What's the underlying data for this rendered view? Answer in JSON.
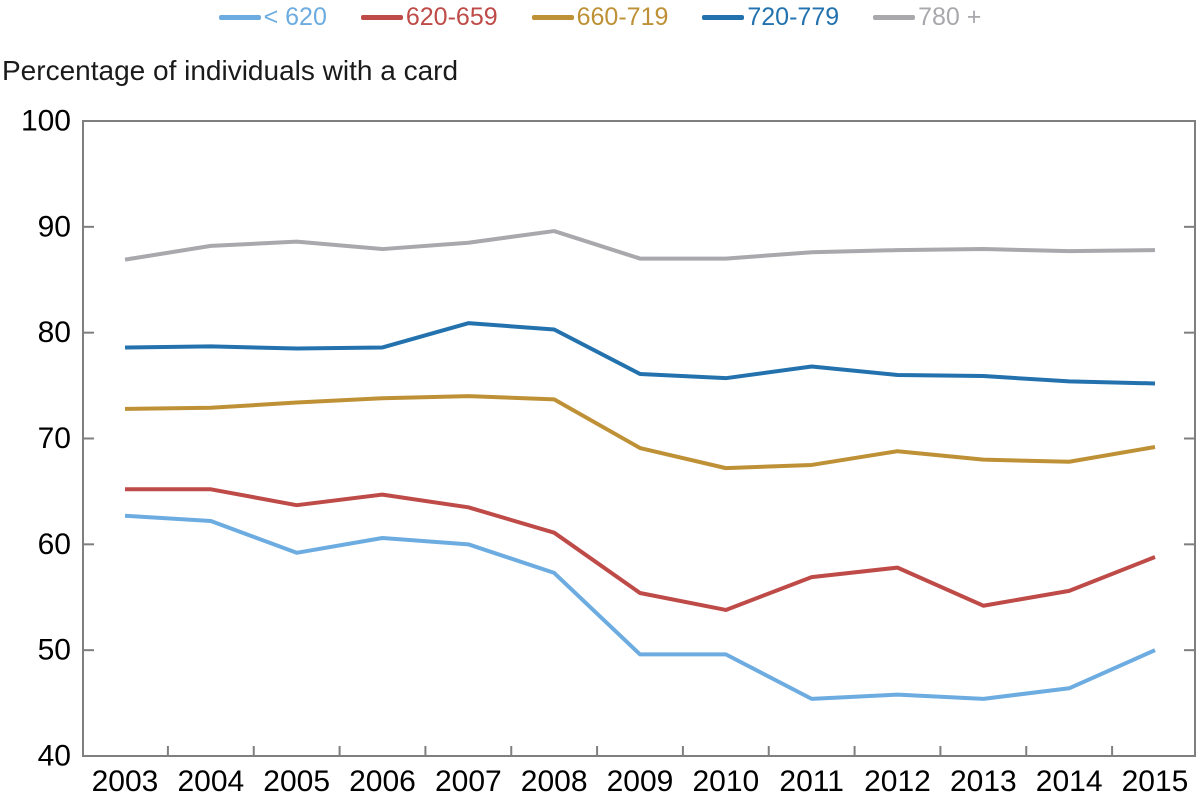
{
  "chart_data": {
    "type": "line",
    "title": "Percentage of individuals with a card",
    "xlabel": "",
    "ylabel": "Percentage of individuals with a card",
    "x": [
      2003,
      2004,
      2005,
      2006,
      2007,
      2008,
      2009,
      2010,
      2011,
      2012,
      2013,
      2014,
      2015
    ],
    "series": [
      {
        "name": "< 620",
        "color": "#6CACE0",
        "values": [
          62.7,
          62.2,
          59.2,
          60.6,
          60.0,
          57.3,
          49.6,
          49.6,
          45.4,
          45.8,
          45.4,
          46.4,
          50.0
        ]
      },
      {
        "name": "620-659",
        "color": "#BE4B48",
        "values": [
          65.2,
          65.2,
          63.7,
          64.7,
          63.5,
          61.1,
          55.4,
          53.8,
          56.9,
          57.8,
          54.2,
          55.6,
          58.8
        ]
      },
      {
        "name": "660-719",
        "color": "#BE9136",
        "values": [
          72.8,
          72.9,
          73.4,
          73.8,
          74.0,
          73.7,
          69.1,
          67.2,
          67.5,
          68.8,
          68.0,
          67.8,
          69.2
        ]
      },
      {
        "name": "720-779",
        "color": "#2372AE",
        "values": [
          78.6,
          78.7,
          78.5,
          78.6,
          80.9,
          80.3,
          76.1,
          75.7,
          76.8,
          76.0,
          75.9,
          75.4,
          75.2
        ]
      },
      {
        "name": "780 +",
        "color": "#A8A8AD",
        "values": [
          86.9,
          88.2,
          88.6,
          87.9,
          88.5,
          89.6,
          87.0,
          87.0,
          87.6,
          87.8,
          87.9,
          87.7,
          87.8
        ]
      }
    ],
    "ylim": [
      40,
      100
    ],
    "yticks": [
      40,
      50,
      60,
      70,
      80,
      90,
      100
    ],
    "grid": false,
    "legend_position": "top-center",
    "axis_color": "#7f7f7f",
    "tick_label_color": "#000000",
    "line_width": 4
  }
}
